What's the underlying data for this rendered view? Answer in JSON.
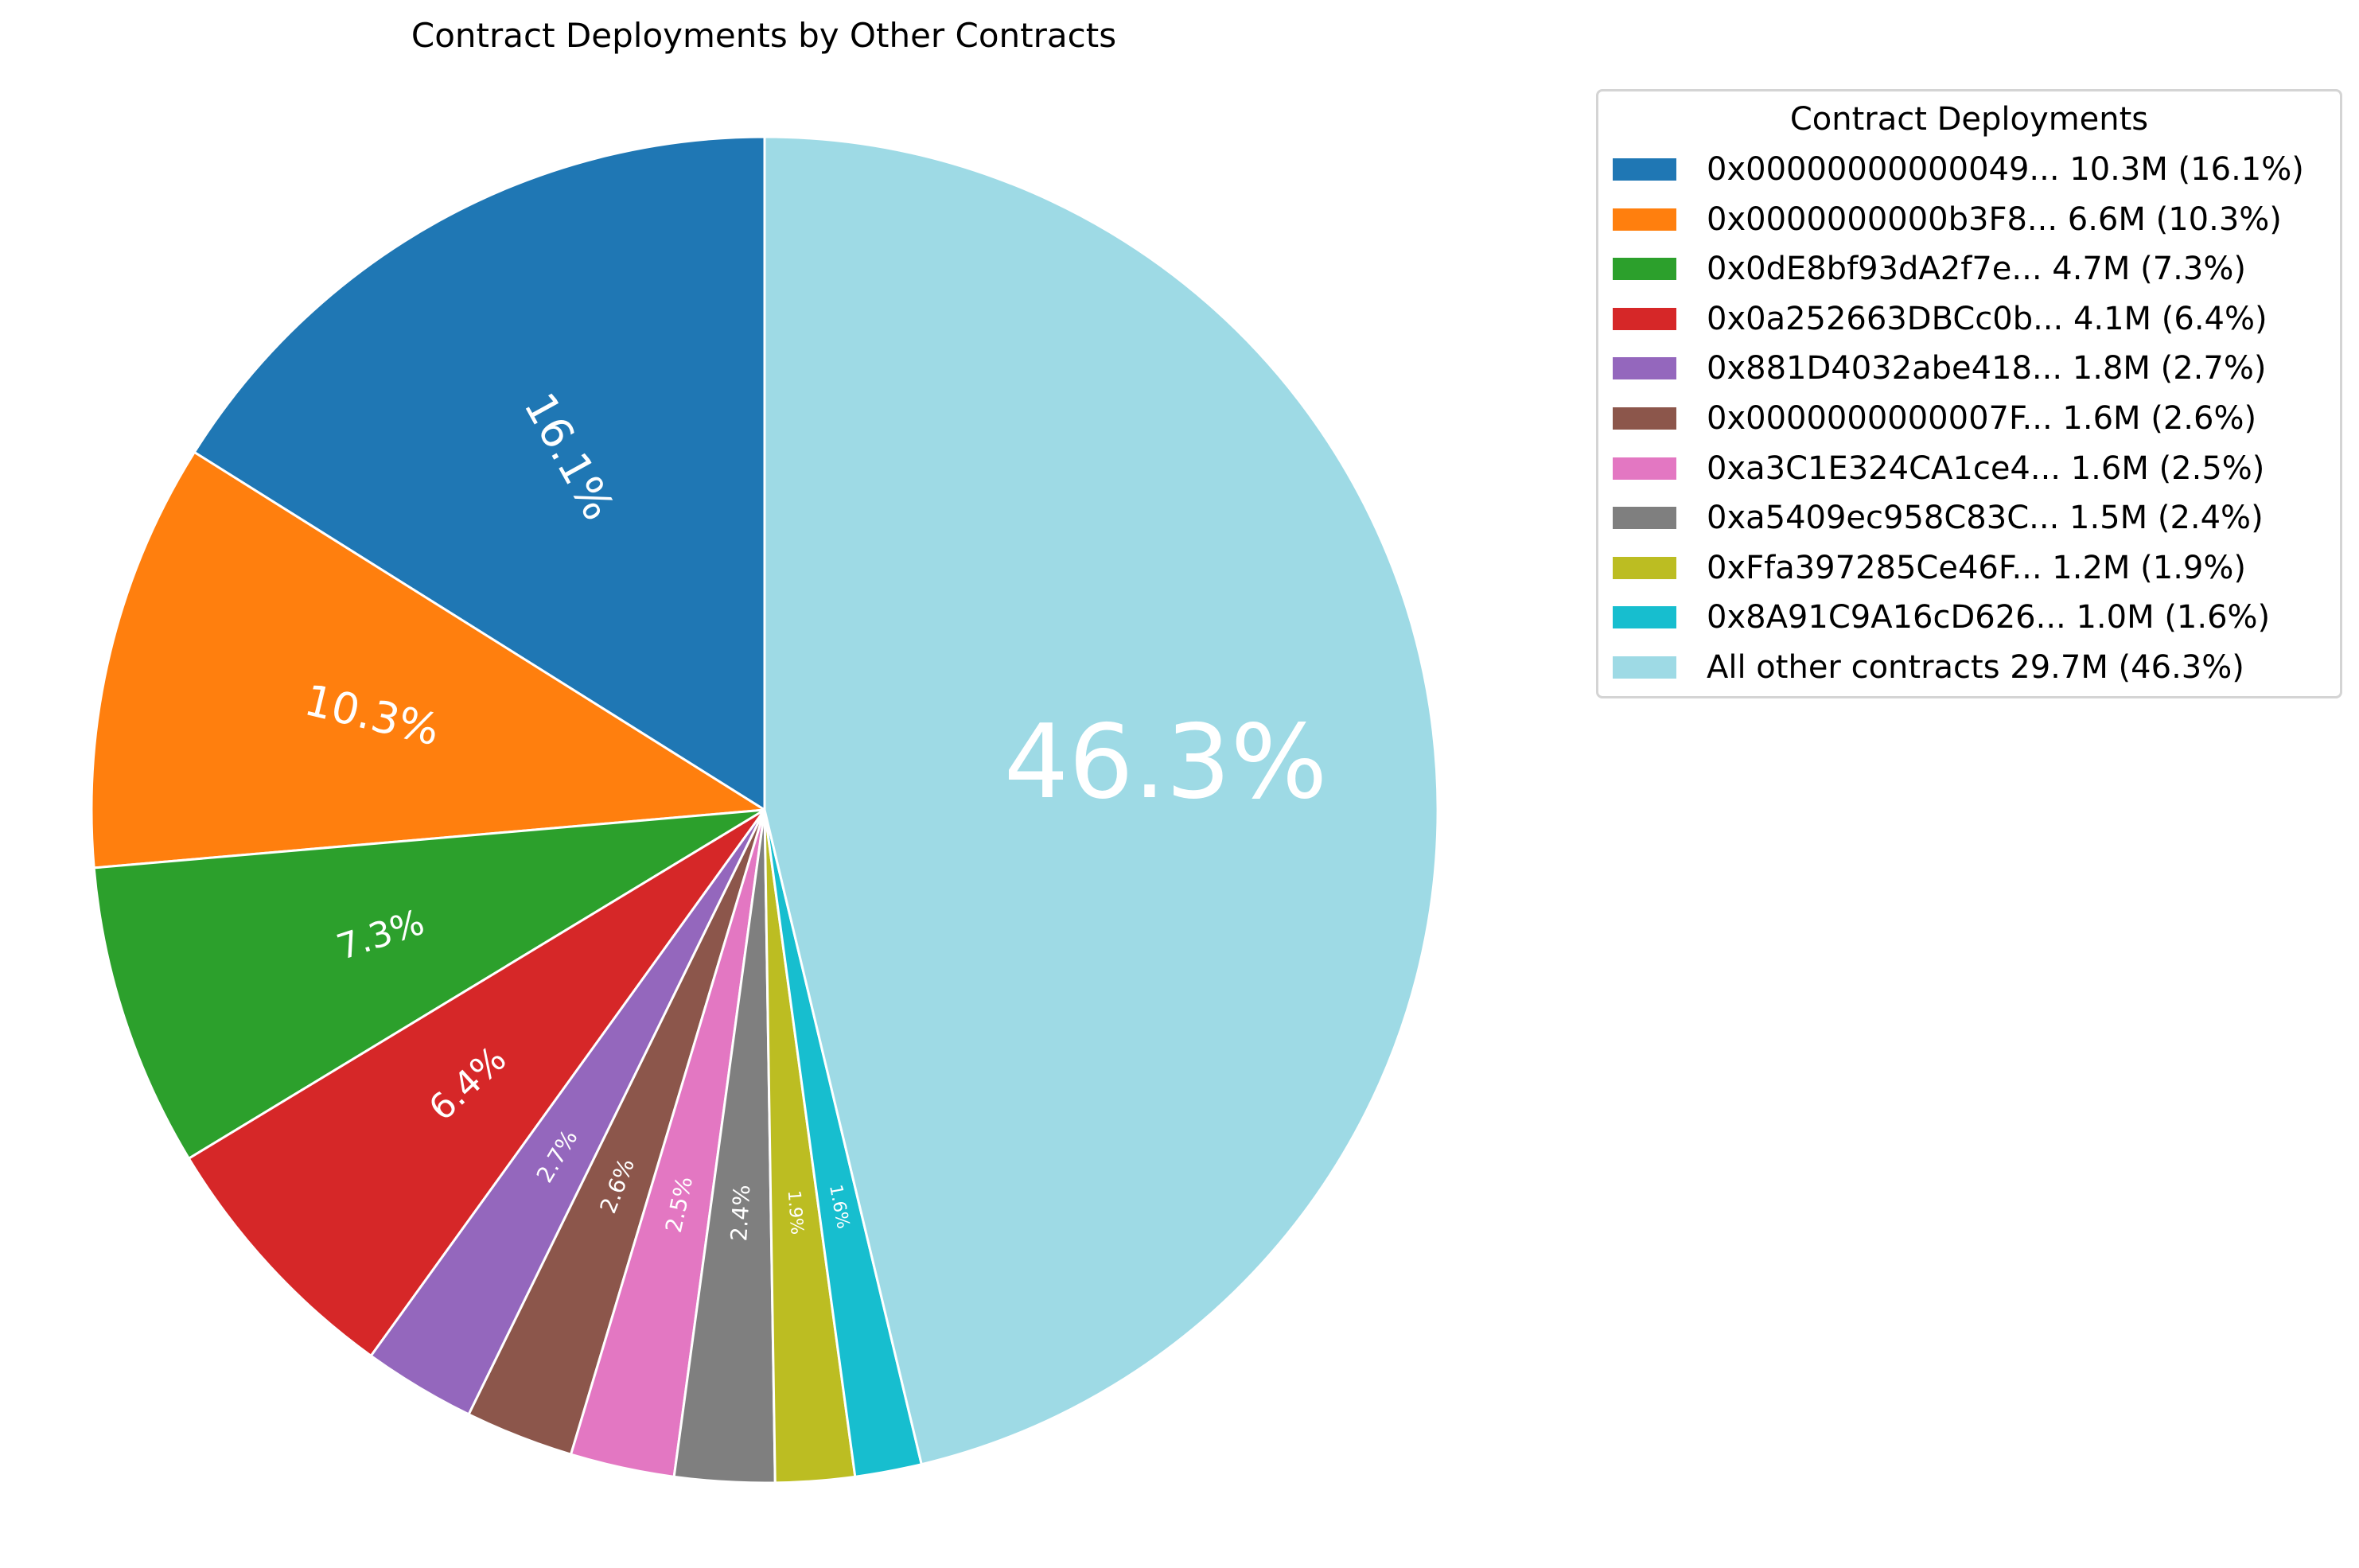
{
  "chart_data": {
    "type": "pie",
    "title": "Contract Deployments by Other Contracts",
    "legend_title": "Contract Deployments",
    "legend_position": "top-right",
    "start_angle": 90,
    "direction": "counterclockwise",
    "slices": [
      {
        "legend_label": "0x00000000000049... 10.3M (16.1%)",
        "value": 16.1,
        "pct_label": "16.1%",
        "color": "#1f77b4"
      },
      {
        "legend_label": "0x0000000000b3F8... 6.6M (10.3%)",
        "value": 10.3,
        "pct_label": "10.3%",
        "color": "#ff7f0e"
      },
      {
        "legend_label": "0x0dE8bf93dA2f7e... 4.7M (7.3%)",
        "value": 7.3,
        "pct_label": "7.3%",
        "color": "#2ca02c"
      },
      {
        "legend_label": "0x0a252663DBCc0b... 4.1M (6.4%)",
        "value": 6.4,
        "pct_label": "6.4%",
        "color": "#d62728"
      },
      {
        "legend_label": "0x881D4032abe418... 1.8M (2.7%)",
        "value": 2.7,
        "pct_label": "2.7%",
        "color": "#9467bd"
      },
      {
        "legend_label": "0x0000000000007F... 1.6M (2.6%)",
        "value": 2.6,
        "pct_label": "2.6%",
        "color": "#8c564b"
      },
      {
        "legend_label": "0xa3C1E324CA1ce4... 1.6M (2.5%)",
        "value": 2.5,
        "pct_label": "2.5%",
        "color": "#e377c2"
      },
      {
        "legend_label": "0xa5409ec958C83C... 1.5M (2.4%)",
        "value": 2.4,
        "pct_label": "2.4%",
        "color": "#7f7f7f"
      },
      {
        "legend_label": "0xFfa397285Ce46F... 1.2M (1.9%)",
        "value": 1.9,
        "pct_label": "1.9%",
        "color": "#bcbd22"
      },
      {
        "legend_label": "0x8A91C9A16cD626... 1.0M (1.6%)",
        "value": 1.6,
        "pct_label": "1.6%",
        "color": "#17becf"
      },
      {
        "legend_label": "All other contracts 29.7M (46.3%)",
        "value": 46.3,
        "pct_label": "46.3%",
        "color": "#9edae5"
      }
    ]
  }
}
